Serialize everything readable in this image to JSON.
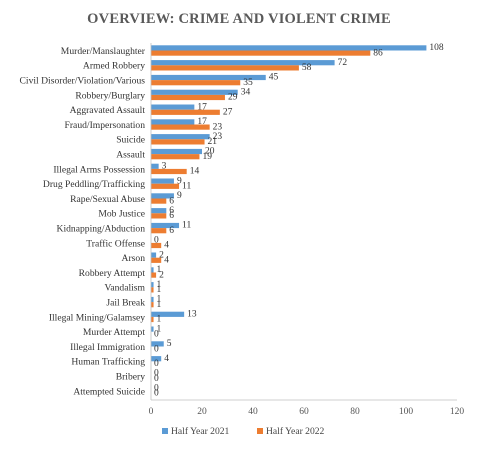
{
  "chart_data": {
    "type": "bar",
    "orientation": "horizontal",
    "title": "OVERVIEW: CRIME AND VIOLENT CRIME",
    "categories": [
      "Murder/Manslaughter",
      "Armed Robbery",
      "Civil Disorder/Violation/Various",
      "Robbery/Burglary",
      "Aggravated Assault",
      "Fraud/Impersonation",
      "Suicide",
      "Assault",
      "Illegal Arms Possession",
      "Drug Peddling/Trafficking",
      "Rape/Sexual Abuse",
      "Mob Justice",
      "Kidnapping/Abduction",
      "Traffic Offense",
      "Arson",
      "Robbery Attempt",
      "Vandalism",
      "Jail Break",
      "Illegal Mining/Galamsey",
      "Murder Attempt",
      "Illegal Immigration",
      "Human Trafficking",
      "Bribery",
      "Attempted Suicide"
    ],
    "series": [
      {
        "name": "Half Year 2021",
        "color": "#5b9bd5",
        "values": [
          108,
          72,
          45,
          34,
          17,
          17,
          23,
          20,
          3,
          9,
          9,
          6,
          11,
          0,
          2,
          1,
          1,
          1,
          13,
          1,
          5,
          4,
          0,
          0
        ]
      },
      {
        "name": "Half Year 2022",
        "color": "#ed7d31",
        "values": [
          86,
          58,
          35,
          29,
          27,
          23,
          21,
          19,
          14,
          11,
          6,
          6,
          6,
          4,
          4,
          2,
          1,
          1,
          1,
          0,
          0,
          0,
          0,
          0
        ]
      }
    ],
    "xlim": [
      0,
      120
    ],
    "xticks": [
      0,
      20,
      40,
      60,
      80,
      100,
      120
    ],
    "grid": false,
    "legend_position": "bottom"
  }
}
